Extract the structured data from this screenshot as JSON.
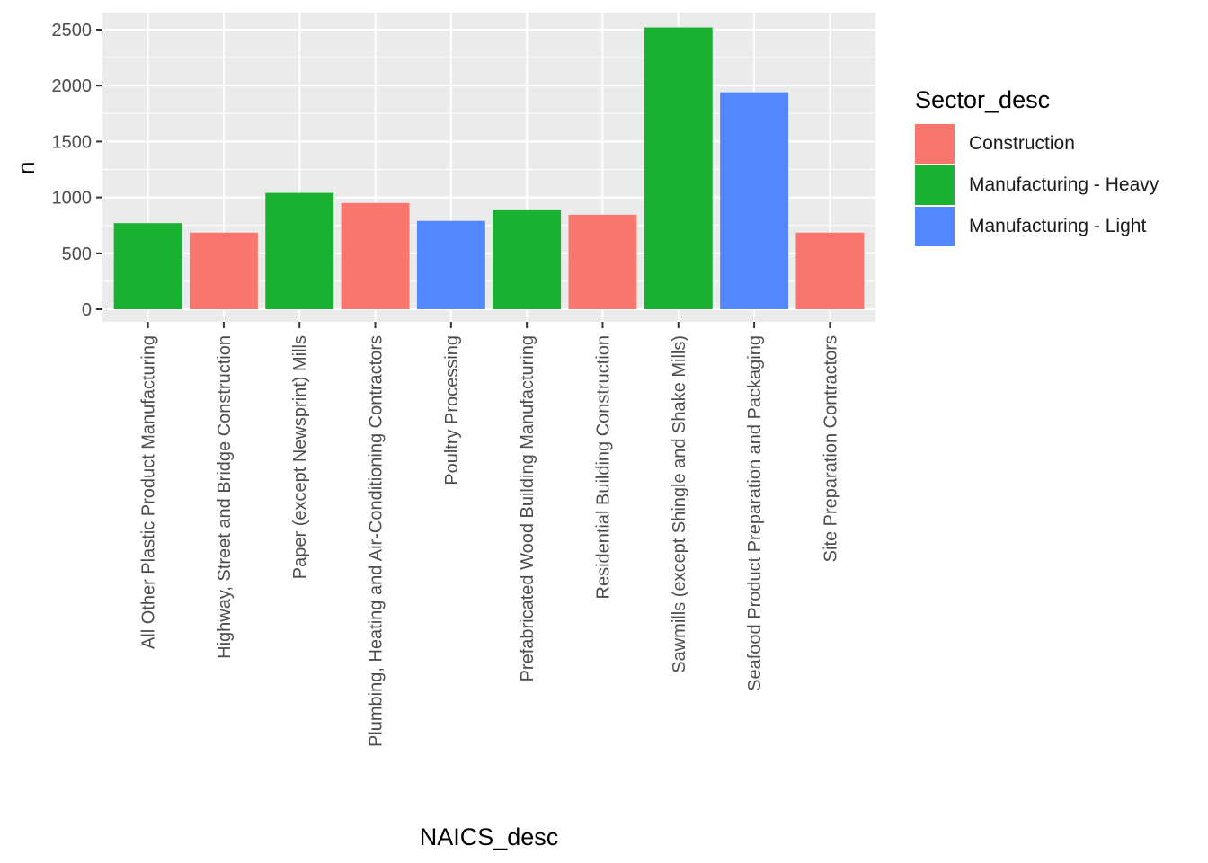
{
  "chart_data": {
    "type": "bar",
    "xlabel": "NAICS_desc",
    "ylabel": "n",
    "ylim": [
      0,
      2500
    ],
    "yticks": [
      0,
      500,
      1000,
      1500,
      2000,
      2500
    ],
    "grid": true,
    "legend": {
      "title": "Sector_desc",
      "position": "right",
      "entries": [
        {
          "label": "Construction",
          "color": "#F8766D"
        },
        {
          "label": "Manufacturing - Heavy",
          "color": "#1AB032"
        },
        {
          "label": "Manufacturing - Light",
          "color": "#5387FF"
        }
      ]
    },
    "categories": [
      "All Other Plastic Product Manufacturing",
      "Highway, Street and Bridge Construction",
      "Paper (except Newsprint) Mills",
      "Plumbing, Heating and Air-Conditioning Contractors",
      "Poultry Processing",
      "Prefabricated Wood Building Manufacturing",
      "Residential Building Construction",
      "Sawmills (except Shingle and Shake Mills)",
      "Seafood Product Preparation and Packaging",
      "Site Preparation Contractors"
    ],
    "values": [
      770,
      685,
      1040,
      950,
      790,
      885,
      845,
      2520,
      1940,
      685
    ],
    "sectors": [
      "Manufacturing - Heavy",
      "Construction",
      "Manufacturing - Heavy",
      "Construction",
      "Manufacturing - Light",
      "Manufacturing - Heavy",
      "Construction",
      "Manufacturing - Heavy",
      "Manufacturing - Light",
      "Construction"
    ],
    "colors": {
      "panel_background": "#EBEBEB",
      "grid_line": "#FFFFFF"
    }
  }
}
